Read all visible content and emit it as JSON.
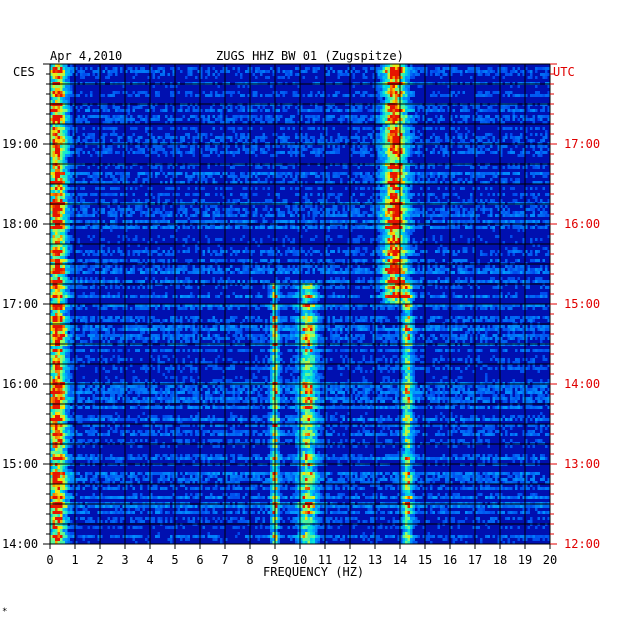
{
  "header": {
    "date": "Apr 4,2010",
    "station": "ZUGS HHZ BW 01 (Zugspitze)",
    "left_zone": "CES",
    "right_zone": "UTC"
  },
  "footer_mark": "*",
  "chart_data": {
    "type": "heatmap",
    "title": "ZUGS HHZ BW 01 (Zugspitze)",
    "subtitle": "Apr 4,2010",
    "xlabel": "FREQUENCY (HZ)",
    "xlim": [
      0,
      20
    ],
    "x_ticks": [
      "0",
      "1",
      "2",
      "3",
      "4",
      "5",
      "6",
      "7",
      "8",
      "9",
      "10",
      "11",
      "12",
      "13",
      "14",
      "15",
      "16",
      "17",
      "18",
      "19",
      "20"
    ],
    "left_axis": {
      "label": "CES",
      "ticks": [
        "19:00",
        "18:00",
        "17:00",
        "16:00",
        "15:00",
        "14:00"
      ]
    },
    "right_axis": {
      "label": "UTC",
      "ticks": [
        "17:00",
        "16:00",
        "15:00",
        "14:00",
        "13:00",
        "12:00"
      ]
    },
    "grid": true,
    "colors": {
      "background": "#0010b0",
      "right_axis": "#e00000"
    },
    "energy_bands_hz": [
      {
        "name": "low-frequency band",
        "center": 0.3,
        "width": 0.35,
        "level": 0.85
      },
      {
        "name": "band near 13.8 Hz (upper half)",
        "center": 13.8,
        "width": 0.45,
        "level": 0.9
      },
      {
        "name": "band near 9 Hz (lower half)",
        "center": 9.0,
        "width": 0.15,
        "level": 0.6
      },
      {
        "name": "band near 10.3 Hz (lower half)",
        "center": 10.3,
        "width": 0.35,
        "level": 0.6
      },
      {
        "name": "band near 14.3 Hz (lower half)",
        "center": 14.3,
        "width": 0.2,
        "level": 0.55
      }
    ]
  }
}
